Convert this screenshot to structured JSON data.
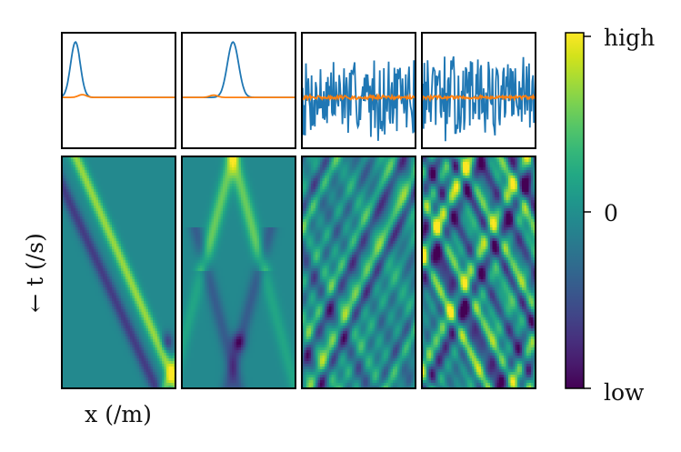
{
  "figure": {
    "xlabel": "x (/m)",
    "ylabel": "← t (/s)",
    "colorbar": {
      "ticks": [
        "high",
        "0",
        "low"
      ],
      "colormap": "viridis"
    }
  },
  "chart_data": [
    {
      "type": "line",
      "panel": "top-1",
      "description_of_series_colors": [
        "#1f77b4",
        "#ff7f0e"
      ],
      "series": [
        {
          "kind": "gaussian",
          "center": 0.12,
          "width": 0.06,
          "amplitude": 1.0
        },
        {
          "kind": "gaussian",
          "center": 0.18,
          "width": 0.05,
          "amplitude": 0.05
        }
      ]
    },
    {
      "type": "line",
      "panel": "top-2",
      "series": [
        {
          "kind": "gaussian",
          "center": 0.45,
          "width": 0.07,
          "amplitude": 1.0
        },
        {
          "kind": "gaussian",
          "center": 0.28,
          "width": 0.05,
          "amplitude": 0.04
        }
      ]
    },
    {
      "type": "line",
      "panel": "top-3",
      "series": [
        {
          "kind": "noise",
          "seed": 7,
          "amplitude": 0.8
        },
        {
          "kind": "noise",
          "seed": 31,
          "amplitude": 0.04
        }
      ]
    },
    {
      "type": "line",
      "panel": "top-4",
      "series": [
        {
          "kind": "noise",
          "seed": 13,
          "amplitude": 0.85
        },
        {
          "kind": "noise",
          "seed": 47,
          "amplitude": 0.04
        }
      ]
    },
    {
      "type": "heatmap",
      "panel": "bottom-1",
      "pattern": "single-pulse-reflecting",
      "colormap": "viridis"
    },
    {
      "type": "heatmap",
      "panel": "bottom-2",
      "pattern": "split-pulse",
      "colormap": "viridis"
    },
    {
      "type": "heatmap",
      "panel": "bottom-3",
      "pattern": "noise-waves",
      "colormap": "viridis"
    },
    {
      "type": "heatmap",
      "panel": "bottom-4",
      "pattern": "noise-waves-strong",
      "colormap": "viridis"
    }
  ]
}
